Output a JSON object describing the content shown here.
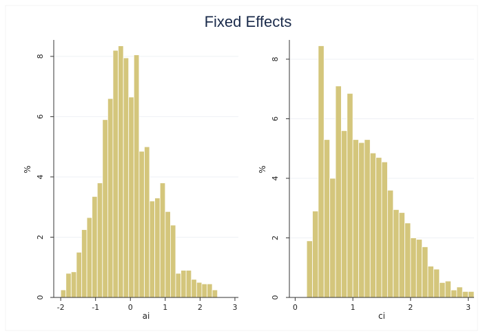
{
  "title": "Fixed Effects",
  "colors": {
    "bar": "#d4c67c",
    "title": "#1a2a4a"
  },
  "chart_data": [
    {
      "type": "bar",
      "xlabel": "ai",
      "ylabel": "%",
      "xlim": [
        -2.2,
        3.1
      ],
      "ylim": [
        0,
        8.5
      ],
      "xticks": [
        -2,
        -1,
        0,
        1,
        2,
        3
      ],
      "xtick_labels": [
        "-2",
        "-1",
        "0",
        "1",
        "2",
        "3"
      ],
      "yticks": [
        0,
        2,
        4,
        6,
        8
      ],
      "ytick_labels": [
        "0",
        "2",
        "4",
        "6",
        "8"
      ],
      "grid": true,
      "bin_width": 0.15,
      "bin_starts": [
        -2.0,
        -1.85,
        -1.7,
        -1.55,
        -1.4,
        -1.25,
        -1.1,
        -0.95,
        -0.8,
        -0.65,
        -0.5,
        -0.35,
        -0.2,
        -0.05,
        0.1,
        0.25,
        0.4,
        0.55,
        0.7,
        0.85,
        1.0,
        1.15,
        1.3,
        1.45,
        1.6,
        1.75,
        1.9,
        2.05,
        2.2,
        2.35
      ],
      "values": [
        0.25,
        0.8,
        0.85,
        1.5,
        2.25,
        2.65,
        3.35,
        3.8,
        5.9,
        6.6,
        8.2,
        8.35,
        7.95,
        6.65,
        8.05,
        4.85,
        5.0,
        3.2,
        3.3,
        3.8,
        2.85,
        2.4,
        0.8,
        0.9,
        0.9,
        0.6,
        0.5,
        0.45,
        0.45,
        0.25
      ]
    },
    {
      "type": "bar",
      "xlabel": "ci",
      "ylabel": "%",
      "xlim": [
        -0.1,
        3.1
      ],
      "ylim": [
        0,
        8.6
      ],
      "xticks": [
        0,
        1,
        2,
        3
      ],
      "xtick_labels": [
        "0",
        "1",
        "2",
        "3"
      ],
      "yticks": [
        0,
        2,
        4,
        6,
        8
      ],
      "ytick_labels": [
        "0",
        "2",
        "4",
        "6",
        "8"
      ],
      "grid": true,
      "bin_width": 0.1,
      "bin_starts": [
        0.2,
        0.3,
        0.4,
        0.5,
        0.6,
        0.7,
        0.8,
        0.9,
        1.0,
        1.1,
        1.2,
        1.3,
        1.4,
        1.5,
        1.6,
        1.7,
        1.8,
        1.9,
        2.0,
        2.1,
        2.2,
        2.3,
        2.4,
        2.5,
        2.6,
        2.7,
        2.8,
        2.9,
        3.0
      ],
      "values": [
        1.9,
        2.9,
        8.45,
        5.3,
        4.0,
        7.1,
        5.6,
        6.85,
        5.3,
        5.2,
        5.3,
        4.85,
        4.7,
        4.55,
        3.6,
        2.95,
        2.85,
        2.5,
        2.0,
        1.95,
        1.7,
        1.05,
        0.95,
        0.5,
        0.55,
        0.25,
        0.35,
        0.2,
        0.2
      ]
    }
  ]
}
